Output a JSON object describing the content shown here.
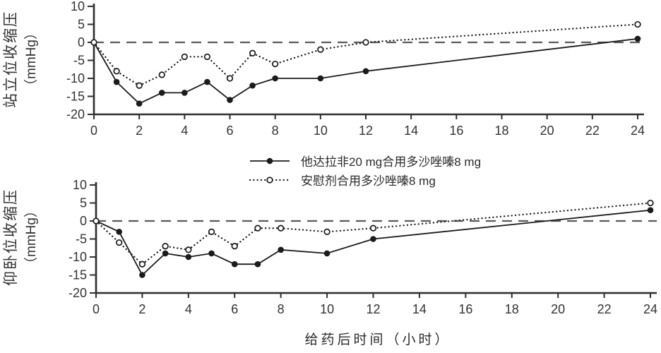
{
  "xlabel": "给药后时间（小时）",
  "colors": {
    "series": "#1b1b1b",
    "axis": "#2e2e2e",
    "zero_line": "#5a5a5a",
    "text": "#333333",
    "background": "#ffffff"
  },
  "chart_data": [
    {
      "type": "line",
      "panel": "standing-systolic-bp",
      "ylabel": "站立位收缩压",
      "ylabel_unit": "（mmHg）",
      "xlim": [
        0,
        24
      ],
      "ylim": [
        -20,
        10
      ],
      "xticks": [
        0,
        2,
        4,
        6,
        8,
        10,
        12,
        14,
        16,
        18,
        20,
        22,
        24
      ],
      "yticks": [
        10,
        5,
        0,
        -5,
        -10,
        -15,
        -20
      ],
      "zero_reference_line": "dashed",
      "grid": "off",
      "x": [
        0,
        1,
        2,
        3,
        4,
        5,
        6,
        7,
        8,
        10,
        12,
        24
      ],
      "series": [
        {
          "name": "他达拉非20 mg合用多沙唑嗪8 mg",
          "line": "solid",
          "marker": "filled-circle",
          "values": [
            0,
            -11,
            -17,
            -14,
            -14,
            -11,
            -16,
            -12,
            -10,
            -10,
            -8,
            1
          ]
        },
        {
          "name": "安慰剂合用多沙唑嗪8 mg",
          "line": "dotted",
          "marker": "open-circle",
          "values": [
            0,
            -8,
            -12,
            -9,
            -4,
            -4,
            -10,
            -3,
            -6,
            -2,
            0,
            5
          ]
        }
      ]
    },
    {
      "type": "line",
      "panel": "supine-systolic-bp",
      "ylabel": "仰卧位收缩压",
      "ylabel_unit": "（mmHg）",
      "xlim": [
        0,
        24
      ],
      "ylim": [
        -20,
        10
      ],
      "xticks": [
        0,
        2,
        4,
        6,
        8,
        10,
        12,
        14,
        16,
        18,
        20,
        22,
        24
      ],
      "yticks": [
        10,
        5,
        0,
        -5,
        -10,
        -15,
        -20
      ],
      "zero_reference_line": "dashed",
      "grid": "off",
      "x": [
        0,
        1,
        2,
        3,
        4,
        5,
        6,
        7,
        8,
        10,
        12,
        24
      ],
      "series": [
        {
          "name": "他达拉非20 mg合用多沙唑嗪8 mg",
          "line": "solid",
          "marker": "filled-circle",
          "values": [
            0,
            -3,
            -15,
            -9,
            -10,
            -9,
            -12,
            -12,
            -8,
            -9,
            -5,
            3
          ]
        },
        {
          "name": "安慰剂合用多沙唑嗪8 mg",
          "line": "dotted",
          "marker": "open-circle",
          "values": [
            0,
            -6,
            -12,
            -7,
            -8,
            -3,
            -7,
            -2,
            -2,
            -3,
            -2,
            5
          ]
        }
      ]
    }
  ]
}
